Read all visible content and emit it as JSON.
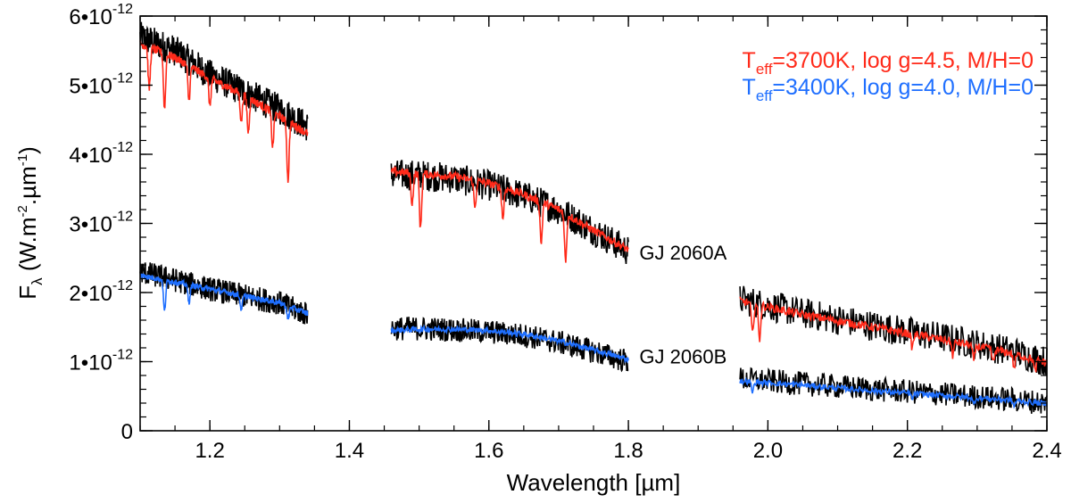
{
  "chart_data": {
    "type": "line",
    "xlabel": "Wavelength [µm]",
    "ylabel_main": "F",
    "ylabel_sub": "λ",
    "ylabel_pre": " (W.m",
    "ylabel_exp1": "-2",
    "ylabel_mid": ".µm",
    "ylabel_exp2": "-1",
    "ylabel_post": ")",
    "xlim": [
      1.1,
      2.4
    ],
    "ylim": [
      0,
      6e-12
    ],
    "grid": false,
    "x_ticks": [
      {
        "value": 1.2,
        "label": "1.2"
      },
      {
        "value": 1.4,
        "label": "1.4"
      },
      {
        "value": 1.6,
        "label": "1.6"
      },
      {
        "value": 1.8,
        "label": "1.8"
      },
      {
        "value": 2.0,
        "label": "2.0"
      },
      {
        "value": 2.2,
        "label": "2.2"
      },
      {
        "value": 2.4,
        "label": "2.4"
      }
    ],
    "y_ticks": [
      {
        "value": 0,
        "mantissa": "0",
        "exponent": ""
      },
      {
        "value": 1e-12,
        "mantissa": "1•10",
        "exponent": "-12"
      },
      {
        "value": 2e-12,
        "mantissa": "2•10",
        "exponent": "-12"
      },
      {
        "value": 3e-12,
        "mantissa": "3•10",
        "exponent": "-12"
      },
      {
        "value": 4e-12,
        "mantissa": "4•10",
        "exponent": "-12"
      },
      {
        "value": 5e-12,
        "mantissa": "5•10",
        "exponent": "-12"
      },
      {
        "value": 6e-12,
        "mantissa": "6•10",
        "exponent": "-12"
      }
    ],
    "legend": [
      {
        "prefix": "T",
        "sub": "eff",
        "text": "=3700K, log g=4.5, M/H=0",
        "color": "#ff2a1a"
      },
      {
        "prefix": "T",
        "sub": "eff",
        "text": "=3400K, log g=4.0, M/H=0",
        "color": "#1f6fff"
      }
    ],
    "annotations": [
      {
        "text": "GJ 2060A",
        "x": 1.803,
        "y": 2.58e-12
      },
      {
        "text": "GJ 2060B",
        "x": 1.803,
        "y": 1.08e-12
      }
    ],
    "series": [
      {
        "name": "GJ 2060A observed",
        "color": "#000000",
        "segments": [
          {
            "x": [
              1.1,
              1.15,
              1.2,
              1.25,
              1.3,
              1.34
            ],
            "y": [
              5.7e-12,
              5.5e-12,
              5.15e-12,
              4.9e-12,
              4.65e-12,
              4.4e-12
            ]
          },
          {
            "x": [
              1.46,
              1.5,
              1.55,
              1.6,
              1.65,
              1.7,
              1.75,
              1.8
            ],
            "y": [
              3.7e-12,
              3.7e-12,
              3.65e-12,
              3.55e-12,
              3.4e-12,
              3.2e-12,
              2.9e-12,
              2.6e-12
            ]
          },
          {
            "x": [
              1.96,
              2.05,
              2.15,
              2.25,
              2.35,
              2.4
            ],
            "y": [
              1.9e-12,
              1.7e-12,
              1.52e-12,
              1.35e-12,
              1.15e-12,
              1e-12
            ]
          }
        ]
      },
      {
        "name": "Teff=3700K model",
        "color": "#ff2a1a",
        "segments": [
          {
            "x": [
              1.1,
              1.15,
              1.2,
              1.25,
              1.3,
              1.34
            ],
            "y": [
              5.6e-12,
              5.4e-12,
              5.1e-12,
              4.85e-12,
              4.55e-12,
              4.3e-12
            ]
          },
          {
            "x": [
              1.46,
              1.5,
              1.55,
              1.6,
              1.65,
              1.7,
              1.75,
              1.8
            ],
            "y": [
              3.75e-12,
              3.72e-12,
              3.68e-12,
              3.58e-12,
              3.42e-12,
              3.2e-12,
              2.9e-12,
              2.62e-12
            ]
          },
          {
            "x": [
              1.96,
              2.05,
              2.15,
              2.25,
              2.35,
              2.4
            ],
            "y": [
              1.88e-12,
              1.68e-12,
              1.5e-12,
              1.32e-12,
              1.12e-12,
              9.8e-13
            ]
          }
        ]
      },
      {
        "name": "GJ 2060B observed",
        "color": "#000000",
        "segments": [
          {
            "x": [
              1.1,
              1.15,
              1.2,
              1.25,
              1.3,
              1.34
            ],
            "y": [
              2.3e-12,
              2.18e-12,
              2.05e-12,
              1.95e-12,
              1.85e-12,
              1.68e-12
            ]
          },
          {
            "x": [
              1.46,
              1.5,
              1.55,
              1.6,
              1.65,
              1.7,
              1.75,
              1.8
            ],
            "y": [
              1.48e-12,
              1.48e-12,
              1.46e-12,
              1.43e-12,
              1.38e-12,
              1.28e-12,
              1.15e-12,
              1e-12
            ]
          },
          {
            "x": [
              1.96,
              2.05,
              2.15,
              2.25,
              2.35,
              2.4
            ],
            "y": [
              7.5e-13,
              6.8e-13,
              6e-13,
              5.3e-13,
              4.5e-13,
              4e-13
            ]
          }
        ]
      },
      {
        "name": "Teff=3400K model",
        "color": "#1f6fff",
        "segments": [
          {
            "x": [
              1.1,
              1.15,
              1.2,
              1.25,
              1.3,
              1.34
            ],
            "y": [
              2.25e-12,
              2.15e-12,
              2.05e-12,
              1.95e-12,
              1.85e-12,
              1.7e-12
            ]
          },
          {
            "x": [
              1.46,
              1.5,
              1.55,
              1.6,
              1.65,
              1.7,
              1.75,
              1.8
            ],
            "y": [
              1.45e-12,
              1.47e-12,
              1.47e-12,
              1.45e-12,
              1.4e-12,
              1.3e-12,
              1.17e-12,
              1.03e-12
            ]
          },
          {
            "x": [
              1.96,
              2.05,
              2.15,
              2.25,
              2.35,
              2.4
            ],
            "y": [
              7.2e-13,
              6.6e-13,
              5.8e-13,
              5.1e-13,
              4.4e-13,
              3.9e-13
            ]
          }
        ]
      }
    ],
    "absorption_lines": [
      {
        "x": 1.113,
        "depth": 6e-13,
        "series": 1
      },
      {
        "x": 1.135,
        "depth": 8e-13,
        "series": 1
      },
      {
        "x": 1.17,
        "depth": 5e-13,
        "series": 1
      },
      {
        "x": 1.2,
        "depth": 4e-13,
        "series": 1
      },
      {
        "x": 1.245,
        "depth": 4e-13,
        "series": 1
      },
      {
        "x": 1.255,
        "depth": 5e-13,
        "series": 1
      },
      {
        "x": 1.29,
        "depth": 5e-13,
        "series": 1
      },
      {
        "x": 1.312,
        "depth": 8.5e-13,
        "series": 1
      },
      {
        "x": 1.49,
        "depth": 4.5e-13,
        "series": 1
      },
      {
        "x": 1.502,
        "depth": 8e-13,
        "series": 1
      },
      {
        "x": 1.58,
        "depth": 4e-13,
        "series": 1
      },
      {
        "x": 1.62,
        "depth": 4.5e-13,
        "series": 1
      },
      {
        "x": 1.675,
        "depth": 6e-13,
        "series": 1
      },
      {
        "x": 1.71,
        "depth": 7e-13,
        "series": 1
      },
      {
        "x": 1.978,
        "depth": 4.5e-13,
        "series": 1
      },
      {
        "x": 1.988,
        "depth": 5e-13,
        "series": 1
      },
      {
        "x": 2.207,
        "depth": 2e-13,
        "series": 1
      },
      {
        "x": 2.265,
        "depth": 2e-13,
        "series": 1
      },
      {
        "x": 2.295,
        "depth": 2.2e-13,
        "series": 1
      },
      {
        "x": 2.323,
        "depth": 2e-13,
        "series": 1
      },
      {
        "x": 2.353,
        "depth": 2e-13,
        "series": 1
      },
      {
        "x": 2.383,
        "depth": 1.8e-13,
        "series": 1
      },
      {
        "x": 1.135,
        "depth": 4.5e-13,
        "series": 3
      },
      {
        "x": 1.17,
        "depth": 2.5e-13,
        "series": 3
      },
      {
        "x": 1.245,
        "depth": 2e-13,
        "series": 3
      },
      {
        "x": 1.312,
        "depth": 2e-13,
        "series": 3
      },
      {
        "x": 1.978,
        "depth": 1.5e-13,
        "series": 3
      },
      {
        "x": 2.207,
        "depth": 8e-14,
        "series": 3
      },
      {
        "x": 2.295,
        "depth": 1e-13,
        "series": 3
      },
      {
        "x": 2.353,
        "depth": 8e-14,
        "series": 3
      }
    ]
  }
}
